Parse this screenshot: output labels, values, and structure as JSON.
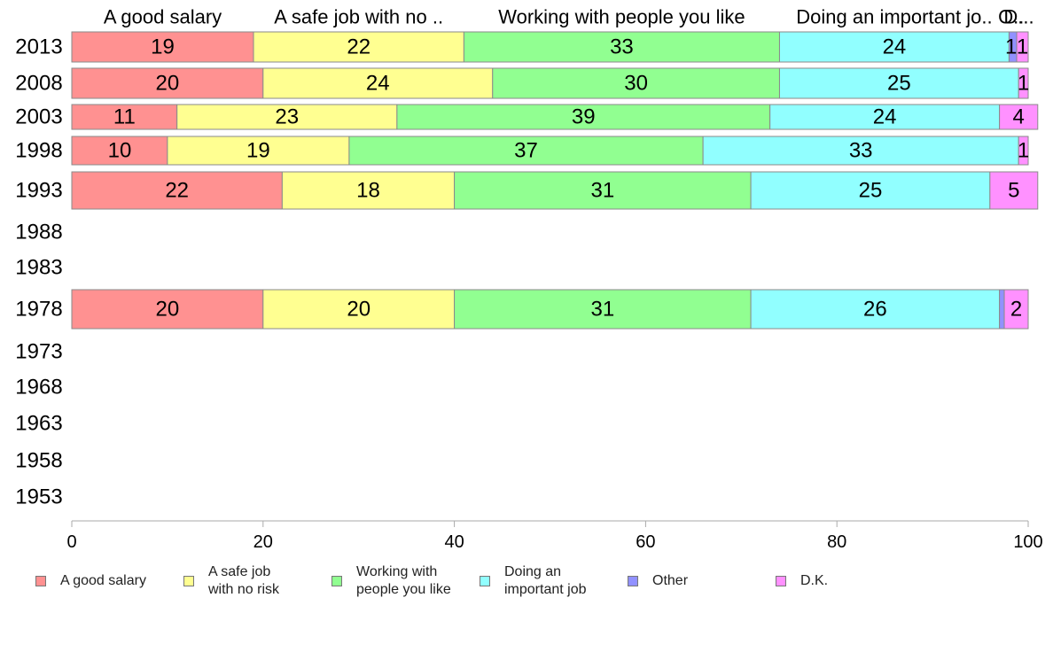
{
  "chart_data": {
    "type": "bar",
    "orientation": "horizontal",
    "stacked": true,
    "title": "",
    "xlabel": "",
    "ylabel": "",
    "xlim": [
      0,
      100
    ],
    "x_ticks": [
      "0",
      "20",
      "40",
      "60",
      "80",
      "100"
    ],
    "categories": [
      "2013",
      "2008",
      "2003",
      "1998",
      "1993",
      "1988",
      "1983",
      "1978",
      "1973",
      "1968",
      "1963",
      "1958",
      "1953"
    ],
    "top_labels": [
      "A good salary",
      "A safe job with no ..",
      "Working with people you like",
      "Doing an important jo..",
      "O..",
      "D..."
    ],
    "series": [
      {
        "name": "A good salary",
        "legend": "A good salary",
        "color": "#ff9191",
        "values": [
          19,
          20,
          11,
          10,
          22,
          null,
          null,
          20,
          null,
          null,
          null,
          null,
          null
        ],
        "labels": [
          "19",
          "20",
          "11",
          "10",
          "22",
          "",
          "",
          "20",
          "",
          "",
          "",
          "",
          ""
        ]
      },
      {
        "name": "A safe job with no risk",
        "legend": "A safe job\nwith no risk",
        "color": "#ffff91",
        "values": [
          22,
          24,
          23,
          19,
          18,
          null,
          null,
          20,
          null,
          null,
          null,
          null,
          null
        ],
        "labels": [
          "22",
          "24",
          "23",
          "19",
          "18",
          "",
          "",
          "20",
          "",
          "",
          "",
          "",
          ""
        ]
      },
      {
        "name": "Working with people you like",
        "legend": "Working with\npeople you like",
        "color": "#91ff91",
        "values": [
          33,
          30,
          39,
          37,
          31,
          null,
          null,
          31,
          null,
          null,
          null,
          null,
          null
        ],
        "labels": [
          "33",
          "30",
          "39",
          "37",
          "31",
          "",
          "",
          "31",
          "",
          "",
          "",
          "",
          ""
        ]
      },
      {
        "name": "Doing an important job",
        "legend": "Doing an\nimportant job",
        "color": "#91ffff",
        "values": [
          24,
          25,
          24,
          33,
          25,
          null,
          null,
          26,
          null,
          null,
          null,
          null,
          null
        ],
        "labels": [
          "24",
          "25",
          "24",
          "33",
          "25",
          "",
          "",
          "26",
          "",
          "",
          "",
          "",
          ""
        ]
      },
      {
        "name": "Other",
        "legend": "Other",
        "color": "#9191ff",
        "values": [
          0.8,
          0,
          0,
          0,
          0,
          null,
          null,
          0.5,
          null,
          null,
          null,
          null,
          null
        ],
        "labels": [
          "",
          "",
          "",
          "",
          "",
          "",
          "",
          "",
          "",
          "",
          "",
          "",
          ""
        ]
      },
      {
        "name": "D.K.",
        "legend": "D.K.",
        "color": "#ff91ff",
        "values": [
          1.2,
          1,
          4,
          1,
          5,
          null,
          null,
          2.5,
          null,
          null,
          null,
          null,
          null
        ],
        "labels": [
          "1",
          "1",
          "4",
          "1",
          "5",
          "",
          "",
          "2",
          "",
          "",
          "",
          "",
          ""
        ]
      }
    ],
    "other_label_2013": "1",
    "grid": false,
    "legend_position": "bottom"
  }
}
